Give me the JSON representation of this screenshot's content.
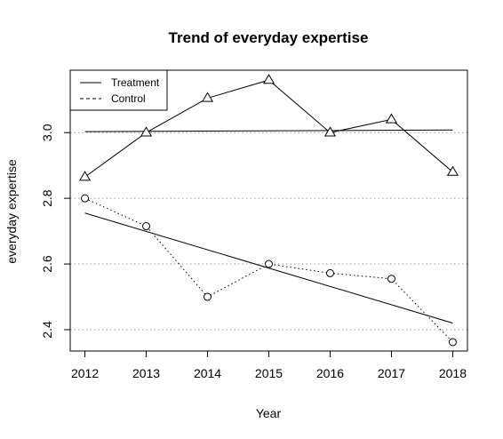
{
  "chart_data": {
    "type": "line",
    "title": "Trend of everyday expertise",
    "xlabel": "Year",
    "ylabel": "everyday expertise",
    "x": [
      2012,
      2013,
      2014,
      2015,
      2016,
      2017,
      2018
    ],
    "xlim": [
      2011.76,
      2018.24
    ],
    "ylim": [
      2.335,
      3.19
    ],
    "yticks": [
      2.4,
      2.6,
      2.8,
      3.0
    ],
    "ytick_labels": [
      "2.4",
      "2.6",
      "2.8",
      "3.0"
    ],
    "grid": "dotted horizontal lines at y ticks",
    "legend_position": "top-left",
    "series": [
      {
        "name": "Treatment",
        "values": [
          2.865,
          3.0,
          3.105,
          3.16,
          3.0,
          3.04,
          2.88
        ],
        "marker": "triangle",
        "line_style": "solid",
        "trend": {
          "from": 3.003,
          "to": 3.008
        }
      },
      {
        "name": "Control",
        "values": [
          2.8,
          2.715,
          2.5,
          2.6,
          2.572,
          2.555,
          2.362
        ],
        "marker": "circle",
        "line_style": "dotted",
        "trend": {
          "from": 2.755,
          "to": 2.42
        }
      }
    ]
  }
}
